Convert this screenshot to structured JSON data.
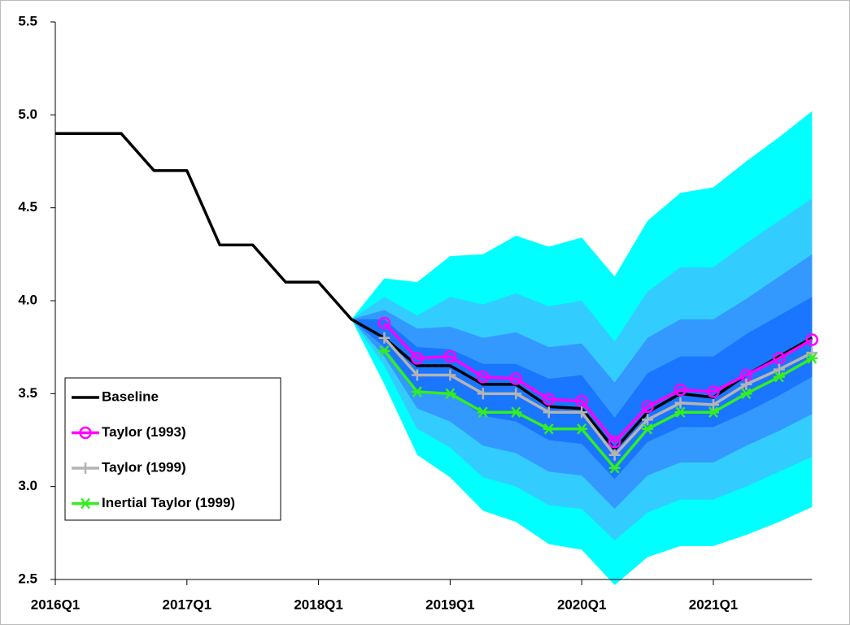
{
  "chart_data": {
    "type": "fan",
    "categories": [
      "2016Q1",
      null,
      null,
      null,
      "2017Q1",
      null,
      null,
      null,
      "2018Q1",
      null,
      null,
      null,
      "2019Q1",
      null,
      null,
      null,
      "2020Q1",
      null,
      null,
      null,
      "2021Q1",
      null,
      null,
      null
    ],
    "ylim": [
      2.5,
      5.5
    ],
    "yticks": [
      2.5,
      {
        "value": 3,
        "label": "3.0"
      },
      3.5,
      {
        "value": 4,
        "label": "4.0"
      },
      4.5,
      {
        "value": 5,
        "label": "5.0"
      },
      5.5
    ],
    "grid": false,
    "legend_position": "lower left",
    "bands": [
      {
        "color": "#00ffff",
        "upper": [
          null,
          null,
          null,
          null,
          null,
          null,
          null,
          null,
          null,
          3.9,
          4.12,
          4.1,
          4.24,
          4.25,
          4.35,
          4.29,
          4.34,
          4.13,
          4.43,
          4.58,
          4.61,
          4.75,
          4.88,
          5.02
        ],
        "lower": [
          null,
          null,
          null,
          null,
          null,
          null,
          null,
          null,
          null,
          3.9,
          3.55,
          3.17,
          3.05,
          2.87,
          2.81,
          2.69,
          2.66,
          2.47,
          2.62,
          2.68,
          2.68,
          2.74,
          2.81,
          2.89
        ]
      },
      {
        "color": "#33ccff",
        "upper": [
          null,
          null,
          null,
          null,
          null,
          null,
          null,
          null,
          null,
          3.9,
          4.02,
          3.92,
          4.02,
          3.98,
          4.04,
          3.97,
          4.0,
          3.78,
          4.05,
          4.18,
          4.18,
          4.31,
          4.43,
          4.55
        ],
        "lower": [
          null,
          null,
          null,
          null,
          null,
          null,
          null,
          null,
          null,
          3.9,
          3.65,
          3.31,
          3.21,
          3.05,
          3.0,
          2.9,
          2.88,
          2.71,
          2.86,
          2.93,
          2.93,
          3.0,
          3.08,
          3.16
        ]
      },
      {
        "color": "#3399ff",
        "upper": [
          null,
          null,
          null,
          null,
          null,
          null,
          null,
          null,
          null,
          3.9,
          3.95,
          3.85,
          3.86,
          3.8,
          3.83,
          3.75,
          3.77,
          3.56,
          3.8,
          3.9,
          3.9,
          4.01,
          4.13,
          4.25
        ],
        "lower": [
          null,
          null,
          null,
          null,
          null,
          null,
          null,
          null,
          null,
          3.9,
          3.7,
          3.42,
          3.35,
          3.22,
          3.18,
          3.08,
          3.06,
          2.88,
          3.06,
          3.13,
          3.13,
          3.22,
          3.3,
          3.39
        ]
      },
      {
        "color": "#1a75ff",
        "upper": [
          null,
          null,
          null,
          null,
          null,
          null,
          null,
          null,
          null,
          3.9,
          3.9,
          3.75,
          3.74,
          3.66,
          3.66,
          3.58,
          3.6,
          3.37,
          3.61,
          3.7,
          3.7,
          3.82,
          3.92,
          4.02
        ],
        "lower": [
          null,
          null,
          null,
          null,
          null,
          null,
          null,
          null,
          null,
          3.9,
          3.75,
          3.52,
          3.5,
          3.38,
          3.35,
          3.25,
          3.23,
          3.04,
          3.24,
          3.32,
          3.32,
          3.4,
          3.49,
          3.59
        ]
      }
    ],
    "series": [
      {
        "name": "Baseline",
        "color": "#000000",
        "marker": "none",
        "values": [
          4.9,
          4.9,
          4.9,
          4.7,
          4.7,
          4.3,
          4.3,
          4.1,
          4.1,
          3.9,
          3.8,
          3.65,
          3.65,
          3.55,
          3.55,
          3.43,
          3.42,
          3.2,
          3.4,
          3.5,
          3.48,
          3.6,
          3.7,
          3.8
        ]
      },
      {
        "name": "Taylor (1993)",
        "color": "#ff00ff",
        "marker": "circle",
        "values": [
          null,
          null,
          null,
          null,
          null,
          null,
          null,
          null,
          null,
          null,
          3.88,
          3.69,
          3.7,
          3.59,
          3.58,
          3.47,
          3.46,
          3.24,
          3.43,
          3.52,
          3.51,
          3.6,
          3.69,
          3.79
        ]
      },
      {
        "name": "Taylor (1999)",
        "color": "#b4b4b4",
        "marker": "plus",
        "values": [
          null,
          null,
          null,
          null,
          null,
          null,
          null,
          null,
          null,
          null,
          3.8,
          3.6,
          3.6,
          3.5,
          3.5,
          3.4,
          3.4,
          3.17,
          3.36,
          3.45,
          3.44,
          3.55,
          3.63,
          3.72
        ]
      },
      {
        "name": "Inertial Taylor (1999)",
        "color": "#33ee22",
        "marker": "asterisk",
        "values": [
          null,
          null,
          null,
          null,
          null,
          null,
          null,
          null,
          null,
          null,
          3.73,
          3.51,
          3.5,
          3.4,
          3.4,
          3.31,
          3.31,
          3.1,
          3.31,
          3.4,
          3.4,
          3.5,
          3.59,
          3.69
        ]
      }
    ]
  }
}
